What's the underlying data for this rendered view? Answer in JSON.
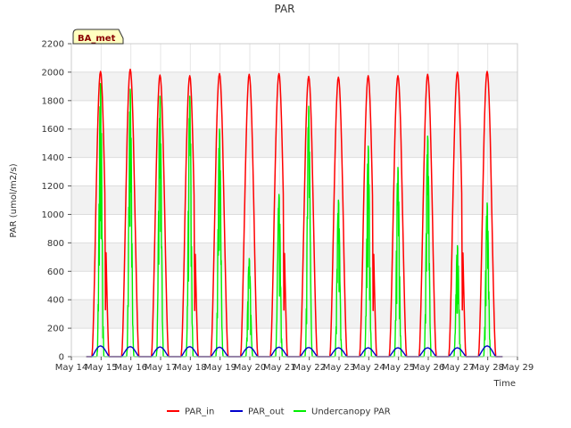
{
  "chart_data": {
    "type": "line",
    "title": "PAR",
    "xlabel": "Time",
    "ylabel": "PAR (umol/m2/s)",
    "site_label": "BA_met",
    "xlim": [
      14,
      29
    ],
    "ylim": [
      0,
      2200
    ],
    "x_ticks": [
      14,
      15,
      16,
      17,
      18,
      19,
      20,
      21,
      22,
      23,
      24,
      25,
      26,
      27,
      28,
      29
    ],
    "x_tick_labels": [
      "May 14",
      "May 15",
      "May 16",
      "May 17",
      "May 18",
      "May 19",
      "May 20",
      "May 21",
      "May 22",
      "May 23",
      "May 24",
      "May 25",
      "May 26",
      "May 27",
      "May 28",
      "May 29"
    ],
    "y_ticks": [
      0,
      200,
      400,
      600,
      800,
      1000,
      1200,
      1400,
      1600,
      1800,
      2000,
      2200
    ],
    "y_tick_labels": [
      "0",
      "200",
      "400",
      "600",
      "800",
      "1000",
      "1200",
      "1400",
      "1600",
      "1800",
      "2000",
      "2200"
    ],
    "grid": true,
    "legend_position": "bottom",
    "series": [
      {
        "name": "PAR_in",
        "color": "#ff0000",
        "days": [
          15,
          16,
          17,
          18,
          19,
          20,
          21,
          22,
          23,
          24,
          25,
          26,
          27,
          28
        ],
        "daily_peaks": [
          2005,
          2020,
          1980,
          1975,
          1990,
          1985,
          1990,
          1970,
          1965,
          1975,
          1975,
          1985,
          2000,
          2005
        ]
      },
      {
        "name": "PAR_out",
        "color": "#0000cc",
        "days": [
          15,
          16,
          17,
          18,
          19,
          20,
          21,
          22,
          23,
          24,
          25,
          26,
          27,
          28
        ],
        "daily_peaks": [
          75,
          70,
          68,
          70,
          66,
          68,
          66,
          64,
          62,
          62,
          62,
          62,
          62,
          75
        ]
      },
      {
        "name": "Undercanopy PAR",
        "color": "#00ee00",
        "days": [
          15,
          16,
          17,
          18,
          19,
          20,
          21,
          22,
          23,
          24,
          25,
          26,
          27,
          28
        ],
        "daily_peaks": [
          1920,
          1880,
          1830,
          1830,
          1600,
          690,
          1140,
          1760,
          1100,
          1480,
          1330,
          1550,
          780,
          1080
        ]
      }
    ]
  }
}
